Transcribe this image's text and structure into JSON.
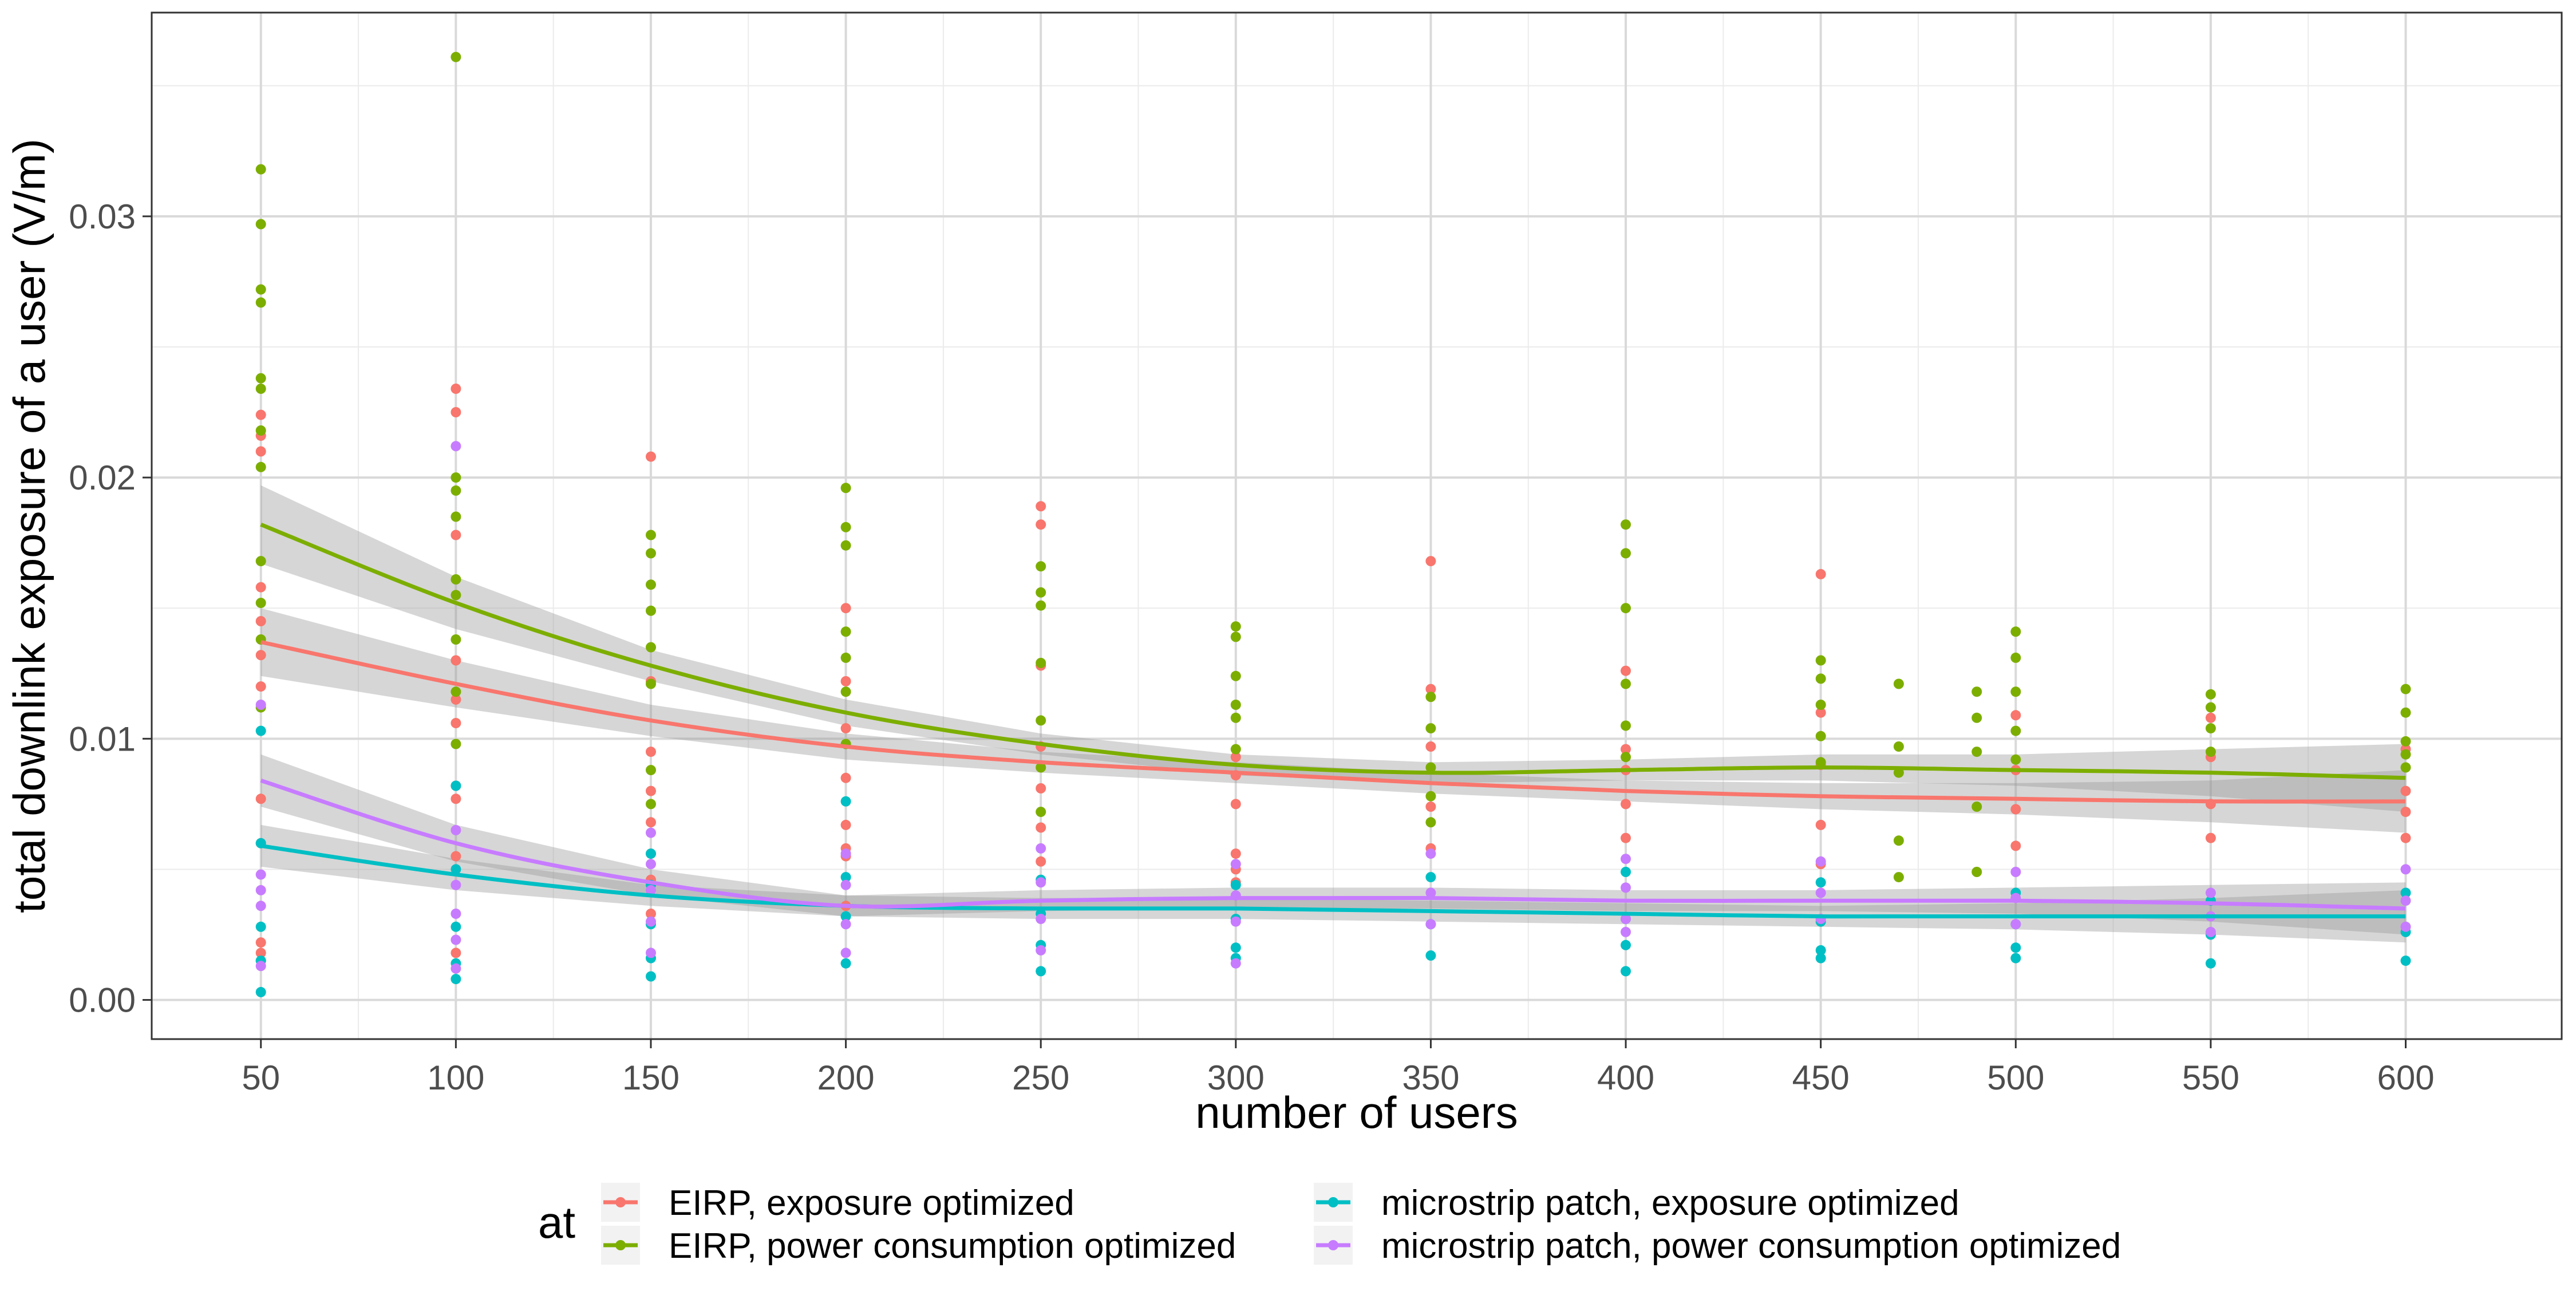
{
  "chart_data": {
    "type": "scatter",
    "title": "",
    "xlabel": "number of users",
    "ylabel": "total downlink exposure of a user (V/m)",
    "xlim": [
      22,
      640
    ],
    "ylim": [
      -0.0015,
      0.0378
    ],
    "x_ticks": [
      50,
      100,
      150,
      200,
      250,
      300,
      350,
      400,
      450,
      500,
      550,
      600
    ],
    "x_tick_labels": [
      "50",
      "100",
      "150",
      "200",
      "250",
      "300",
      "350",
      "400",
      "450",
      "500",
      "550",
      "600"
    ],
    "y_ticks": [
      0.0,
      0.01,
      0.02,
      0.03
    ],
    "y_tick_labels": [
      "0.00",
      "0.01",
      "0.02",
      "0.03"
    ],
    "grid": true,
    "legend": {
      "title": "at",
      "position": "bottom"
    },
    "series": [
      {
        "name": "EIRP, exposure optimized",
        "color": "#F8766D",
        "smooth": {
          "x": [
            50,
            100,
            150,
            200,
            250,
            300,
            350,
            400,
            450,
            500,
            550,
            600
          ],
          "y": [
            0.0137,
            0.0121,
            0.0107,
            0.0097,
            0.0091,
            0.0087,
            0.0083,
            0.008,
            0.0078,
            0.0077,
            0.0076,
            0.0076
          ],
          "lower": [
            0.0124,
            0.0112,
            0.0101,
            0.0092,
            0.0087,
            0.0083,
            0.0079,
            0.0076,
            0.0073,
            0.0071,
            0.0068,
            0.0064
          ],
          "upper": [
            0.015,
            0.013,
            0.0113,
            0.0102,
            0.0095,
            0.0091,
            0.0087,
            0.0084,
            0.0083,
            0.0083,
            0.0084,
            0.0088
          ]
        },
        "points": {
          "x": [
            50,
            50,
            50,
            50,
            50,
            50,
            50,
            50,
            50,
            50,
            50,
            50,
            100,
            100,
            100,
            100,
            100,
            100,
            100,
            100,
            100,
            100,
            150,
            150,
            150,
            150,
            150,
            150,
            150,
            150,
            200,
            200,
            200,
            200,
            200,
            200,
            200,
            200,
            250,
            250,
            250,
            250,
            250,
            250,
            250,
            300,
            300,
            300,
            300,
            300,
            300,
            350,
            350,
            350,
            350,
            350,
            400,
            400,
            400,
            400,
            400,
            450,
            450,
            450,
            450,
            450,
            500,
            500,
            500,
            500,
            550,
            550,
            550,
            550,
            600,
            600,
            600,
            600
          ],
          "y": [
            0.0224,
            0.0216,
            0.021,
            0.0158,
            0.0145,
            0.0132,
            0.012,
            0.0077,
            0.0022,
            0.0018,
            0.0015,
            0.006,
            0.0234,
            0.0225,
            0.0178,
            0.013,
            0.0115,
            0.0106,
            0.0082,
            0.0077,
            0.0055,
            0.0018,
            0.0208,
            0.0122,
            0.0095,
            0.008,
            0.0068,
            0.0056,
            0.0046,
            0.0033,
            0.015,
            0.0122,
            0.0104,
            0.0085,
            0.0067,
            0.0058,
            0.0055,
            0.0036,
            0.0189,
            0.0182,
            0.0128,
            0.0097,
            0.0081,
            0.0066,
            0.0053,
            0.0093,
            0.0086,
            0.0075,
            0.0056,
            0.005,
            0.0045,
            0.0168,
            0.0119,
            0.0097,
            0.0074,
            0.0058,
            0.0126,
            0.0096,
            0.0088,
            0.0075,
            0.0062,
            0.0163,
            0.011,
            0.009,
            0.0067,
            0.0052,
            0.0109,
            0.0088,
            0.0073,
            0.0059,
            0.0108,
            0.0093,
            0.0075,
            0.0062,
            0.0096,
            0.008,
            0.0072,
            0.0062
          ]
        }
      },
      {
        "name": "EIRP, power consumption optimized",
        "color": "#7CAE00",
        "smooth": {
          "x": [
            50,
            100,
            150,
            200,
            250,
            300,
            350,
            400,
            450,
            500,
            550,
            600
          ],
          "y": [
            0.0182,
            0.0152,
            0.0128,
            0.011,
            0.0098,
            0.009,
            0.0087,
            0.0088,
            0.0089,
            0.0088,
            0.0087,
            0.0085
          ],
          "lower": [
            0.0167,
            0.0142,
            0.0122,
            0.0105,
            0.0094,
            0.0086,
            0.0083,
            0.0084,
            0.0084,
            0.0082,
            0.0078,
            0.0072
          ],
          "upper": [
            0.0197,
            0.0162,
            0.0134,
            0.0115,
            0.0102,
            0.0094,
            0.0091,
            0.0092,
            0.0094,
            0.0094,
            0.0096,
            0.0098
          ]
        },
        "points": {
          "x": [
            50,
            50,
            50,
            50,
            50,
            50,
            50,
            50,
            50,
            50,
            50,
            50,
            100,
            100,
            100,
            100,
            100,
            100,
            100,
            100,
            100,
            150,
            150,
            150,
            150,
            150,
            150,
            150,
            150,
            200,
            200,
            200,
            200,
            200,
            200,
            200,
            250,
            250,
            250,
            250,
            250,
            250,
            250,
            300,
            300,
            300,
            300,
            300,
            300,
            350,
            350,
            350,
            350,
            350,
            400,
            400,
            400,
            400,
            400,
            400,
            450,
            450,
            450,
            450,
            450,
            470,
            470,
            470,
            470,
            470,
            490,
            490,
            490,
            490,
            490,
            500,
            500,
            500,
            500,
            500,
            550,
            550,
            550,
            550,
            600,
            600,
            600,
            600,
            600
          ],
          "y": [
            0.0318,
            0.0297,
            0.0272,
            0.0267,
            0.0238,
            0.0234,
            0.0218,
            0.0204,
            0.0168,
            0.0152,
            0.0138,
            0.0112,
            0.0361,
            0.02,
            0.0195,
            0.0185,
            0.0161,
            0.0155,
            0.0138,
            0.0118,
            0.0098,
            0.0178,
            0.0171,
            0.0159,
            0.0149,
            0.0135,
            0.0121,
            0.0088,
            0.0075,
            0.0196,
            0.0181,
            0.0174,
            0.0141,
            0.0131,
            0.0118,
            0.0098,
            0.0166,
            0.0156,
            0.0151,
            0.0129,
            0.0107,
            0.0089,
            0.0072,
            0.0143,
            0.0139,
            0.0124,
            0.0113,
            0.0108,
            0.0096,
            0.0116,
            0.0104,
            0.0089,
            0.0078,
            0.0068,
            0.0182,
            0.0171,
            0.015,
            0.0121,
            0.0105,
            0.0093,
            0.013,
            0.0123,
            0.0113,
            0.0101,
            0.0091,
            0.0121,
            0.0097,
            0.0087,
            0.0061,
            0.0047,
            0.0118,
            0.0108,
            0.0095,
            0.0074,
            0.0049,
            0.0141,
            0.0131,
            0.0118,
            0.0103,
            0.0092,
            0.0117,
            0.0112,
            0.0104,
            0.0095,
            0.0119,
            0.011,
            0.0099,
            0.0094,
            0.0089
          ]
        }
      },
      {
        "name": "microstrip patch, exposure optimized",
        "color": "#00BFC4",
        "smooth": {
          "x": [
            50,
            100,
            150,
            200,
            250,
            300,
            350,
            400,
            450,
            500,
            550,
            600
          ],
          "y": [
            0.0059,
            0.0048,
            0.004,
            0.0036,
            0.0035,
            0.0035,
            0.0034,
            0.0033,
            0.0032,
            0.0032,
            0.0032,
            0.0032
          ],
          "lower": [
            0.0051,
            0.0042,
            0.0036,
            0.0032,
            0.0031,
            0.0031,
            0.003,
            0.0029,
            0.0028,
            0.0027,
            0.0025,
            0.0022
          ],
          "upper": [
            0.0067,
            0.0054,
            0.0044,
            0.004,
            0.0039,
            0.0039,
            0.0038,
            0.0037,
            0.0036,
            0.0037,
            0.0039,
            0.0042
          ]
        },
        "points": {
          "x": [
            50,
            50,
            50,
            50,
            50,
            100,
            100,
            100,
            100,
            100,
            150,
            150,
            150,
            150,
            150,
            200,
            200,
            200,
            200,
            250,
            250,
            250,
            250,
            300,
            300,
            300,
            300,
            350,
            350,
            350,
            400,
            400,
            400,
            400,
            450,
            450,
            450,
            450,
            500,
            500,
            500,
            500,
            550,
            550,
            550,
            600,
            600,
            600
          ],
          "y": [
            0.0103,
            0.006,
            0.0028,
            0.0015,
            0.0003,
            0.0082,
            0.005,
            0.0028,
            0.0014,
            0.0008,
            0.0056,
            0.0044,
            0.0029,
            0.0016,
            0.0009,
            0.0076,
            0.0047,
            0.0032,
            0.0014,
            0.0046,
            0.0033,
            0.0021,
            0.0011,
            0.0044,
            0.0031,
            0.002,
            0.0016,
            0.0047,
            0.0029,
            0.0017,
            0.0049,
            0.0031,
            0.0021,
            0.0011,
            0.0045,
            0.003,
            0.0019,
            0.0016,
            0.0041,
            0.0029,
            0.002,
            0.0016,
            0.0038,
            0.0025,
            0.0014,
            0.0041,
            0.0026,
            0.0015
          ]
        }
      },
      {
        "name": "microstrip patch, power consumption optimized",
        "color": "#C77CFF",
        "smooth": {
          "x": [
            50,
            100,
            150,
            200,
            250,
            300,
            350,
            400,
            450,
            500,
            550,
            600
          ],
          "y": [
            0.0084,
            0.006,
            0.0045,
            0.0036,
            0.0038,
            0.0039,
            0.0039,
            0.0038,
            0.0038,
            0.0038,
            0.0037,
            0.0035
          ],
          "lower": [
            0.0074,
            0.0053,
            0.004,
            0.0032,
            0.0034,
            0.0035,
            0.0035,
            0.0034,
            0.0034,
            0.0033,
            0.003,
            0.0025
          ],
          "upper": [
            0.0094,
            0.0067,
            0.005,
            0.004,
            0.0042,
            0.0043,
            0.0043,
            0.0042,
            0.0042,
            0.0043,
            0.0044,
            0.0045
          ]
        },
        "points": {
          "x": [
            50,
            50,
            50,
            50,
            50,
            100,
            100,
            100,
            100,
            100,
            100,
            150,
            150,
            150,
            150,
            150,
            200,
            200,
            200,
            200,
            250,
            250,
            250,
            250,
            300,
            300,
            300,
            300,
            350,
            350,
            350,
            400,
            400,
            400,
            400,
            450,
            450,
            450,
            500,
            500,
            500,
            550,
            550,
            550,
            600,
            600,
            600
          ],
          "y": [
            0.0113,
            0.0048,
            0.0042,
            0.0036,
            0.0013,
            0.0212,
            0.0065,
            0.0044,
            0.0033,
            0.0023,
            0.0012,
            0.0064,
            0.0052,
            0.0042,
            0.003,
            0.0018,
            0.0056,
            0.0044,
            0.0029,
            0.0018,
            0.0058,
            0.0045,
            0.0031,
            0.0019,
            0.0052,
            0.004,
            0.003,
            0.0014,
            0.0056,
            0.0041,
            0.0029,
            0.0054,
            0.0043,
            0.0031,
            0.0026,
            0.0053,
            0.0041,
            0.0031,
            0.0049,
            0.0039,
            0.0029,
            0.0041,
            0.0032,
            0.0026,
            0.005,
            0.0038,
            0.0028
          ]
        }
      }
    ]
  }
}
